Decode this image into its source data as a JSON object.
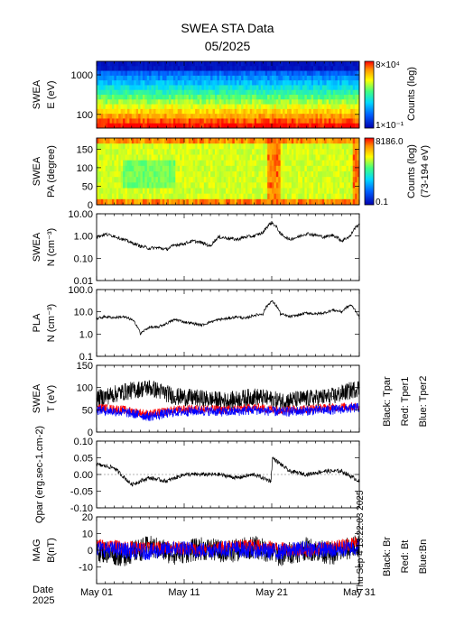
{
  "title": "SWEA STA Data",
  "subtitle": "05/2025",
  "date_label": [
    "Date",
    "2025"
  ],
  "timestamp": "Thu Sep  4 13:22:03 2025",
  "x_ticks": [
    "May 01",
    "May 11",
    "May 21",
    "May 31"
  ],
  "colors": {
    "black": "#000000",
    "red": "#ff0000",
    "blue": "#0000ff"
  },
  "chart_data": [
    {
      "type": "heatmap",
      "ylabel": [
        "SWEA",
        "E (eV)"
      ],
      "yscale": "log",
      "yticks": [
        "1000",
        "100"
      ],
      "colorbar": {
        "label": "Counts (log)",
        "max": "8×10⁴",
        "min": "1×10⁻¹"
      }
    },
    {
      "type": "heatmap",
      "ylabel": [
        "SWEA",
        "PA (degree)"
      ],
      "ylim": [
        0,
        180
      ],
      "yticks": [
        "150",
        "100",
        "50",
        "0"
      ],
      "colorbar": {
        "label": "Counts (log)",
        "label2": "(73-194 eV)",
        "max": "8186.0",
        "min": "0.1"
      }
    },
    {
      "type": "line",
      "ylabel": [
        "SWEA",
        "N (cm⁻³)"
      ],
      "yscale": "log",
      "ylim": [
        0.01,
        10
      ],
      "yticks": [
        "10.00",
        "1.00",
        "0.10",
        "0.01"
      ],
      "series": [
        {
          "color": "black",
          "x": [
            1,
            2,
            3,
            4,
            5,
            6,
            7,
            8,
            9,
            10,
            11,
            12,
            13,
            14,
            15,
            16,
            17,
            18,
            19,
            20,
            21,
            22,
            23,
            24,
            25,
            26,
            27,
            28,
            29,
            30,
            31
          ],
          "values": [
            0.9,
            1.2,
            1.0,
            0.7,
            0.5,
            0.35,
            0.28,
            0.3,
            0.25,
            0.4,
            0.45,
            0.6,
            0.5,
            0.35,
            0.9,
            0.8,
            0.7,
            0.9,
            1.0,
            1.4,
            4.0,
            1.2,
            0.7,
            0.9,
            1.3,
            1.1,
            0.9,
            1.1,
            0.6,
            1.0,
            3.5
          ]
        }
      ]
    },
    {
      "type": "line",
      "ylabel": [
        "PLA",
        "N (cm⁻³)"
      ],
      "yscale": "log",
      "ylim": [
        0.1,
        100
      ],
      "yticks": [
        "100.0",
        "10.0",
        "1.0",
        "0.1"
      ],
      "series": [
        {
          "color": "black",
          "x": [
            1,
            2,
            3,
            4,
            5,
            6,
            7,
            8,
            9,
            10,
            11,
            12,
            13,
            14,
            15,
            16,
            17,
            18,
            19,
            20,
            21,
            22,
            23,
            24,
            25,
            26,
            27,
            28,
            29,
            30,
            31
          ],
          "values": [
            5.0,
            6.0,
            5.5,
            6.0,
            4.5,
            1.0,
            2.0,
            2.0,
            3.0,
            4.5,
            3.5,
            3.0,
            2.5,
            3.5,
            4.5,
            5.0,
            6.0,
            5.0,
            7.0,
            8.0,
            30.0,
            8.0,
            6.0,
            7.0,
            9.0,
            8.0,
            9.0,
            12.0,
            10.0,
            20.0,
            5.0
          ]
        }
      ]
    },
    {
      "type": "line",
      "ylabel": [
        "SWEA",
        "T (eV)"
      ],
      "ylim": [
        0,
        150
      ],
      "yticks": [
        "150",
        "100",
        "50",
        "0"
      ],
      "legend": [
        "Black: Tpar",
        "Red: Tper1",
        "Blue: Tper2"
      ],
      "series": [
        {
          "color": "black",
          "x": [
            1,
            4,
            7,
            10,
            13,
            16,
            19,
            22,
            25,
            28,
            31
          ],
          "values": [
            75,
            90,
            100,
            80,
            75,
            70,
            80,
            70,
            75,
            80,
            100
          ]
        },
        {
          "color": "red",
          "x": [
            1,
            4,
            7,
            10,
            13,
            16,
            19,
            22,
            25,
            28,
            31
          ],
          "values": [
            55,
            50,
            40,
            50,
            52,
            50,
            55,
            50,
            52,
            55,
            58
          ]
        },
        {
          "color": "blue",
          "x": [
            1,
            4,
            7,
            10,
            13,
            16,
            19,
            22,
            25,
            28,
            31
          ],
          "values": [
            50,
            45,
            35,
            45,
            48,
            45,
            50,
            45,
            48,
            50,
            55
          ]
        }
      ]
    },
    {
      "type": "line",
      "ylabel": [
        "Qpar (erg.sec-1.cm-2)"
      ],
      "ylim": [
        -0.1,
        0.1
      ],
      "yticks": [
        "0.10",
        "0.05",
        "0.00",
        "-0.05",
        "-0.10"
      ],
      "series": [
        {
          "color": "black",
          "x": [
            1,
            3,
            5,
            7,
            9,
            11,
            13,
            15,
            17,
            19,
            20.9,
            21.1,
            23,
            25,
            27,
            29,
            31
          ],
          "values": [
            0.03,
            0.02,
            -0.03,
            -0.01,
            -0.02,
            0.0,
            0.0,
            0.0,
            -0.01,
            0.0,
            -0.02,
            0.05,
            0.01,
            0.0,
            0.01,
            0.01,
            -0.02
          ]
        }
      ]
    },
    {
      "type": "line",
      "ylabel": [
        "MAG",
        "B(nT)"
      ],
      "ylim": [
        -20,
        20
      ],
      "yticks": [
        "20",
        "10",
        "0",
        "-10"
      ],
      "legend": [
        "Black: Br",
        "Red: Bt",
        "Blue:Bn"
      ],
      "series": [
        {
          "color": "black",
          "x": [
            1,
            4,
            7,
            10,
            13,
            16,
            19,
            22,
            25,
            28,
            31
          ],
          "values": [
            0,
            -3,
            2,
            -2,
            1,
            -1,
            2,
            -3,
            1,
            -2,
            3
          ]
        },
        {
          "color": "red",
          "x": [
            1,
            4,
            7,
            10,
            13,
            16,
            19,
            22,
            25,
            28,
            31
          ],
          "values": [
            3,
            2,
            1,
            2,
            0,
            2,
            3,
            1,
            0,
            2,
            5
          ]
        },
        {
          "color": "blue",
          "x": [
            1,
            4,
            7,
            10,
            13,
            16,
            19,
            22,
            25,
            28,
            31
          ],
          "values": [
            1,
            0,
            -1,
            1,
            0,
            1,
            0,
            -1,
            1,
            0,
            2
          ]
        }
      ]
    }
  ]
}
